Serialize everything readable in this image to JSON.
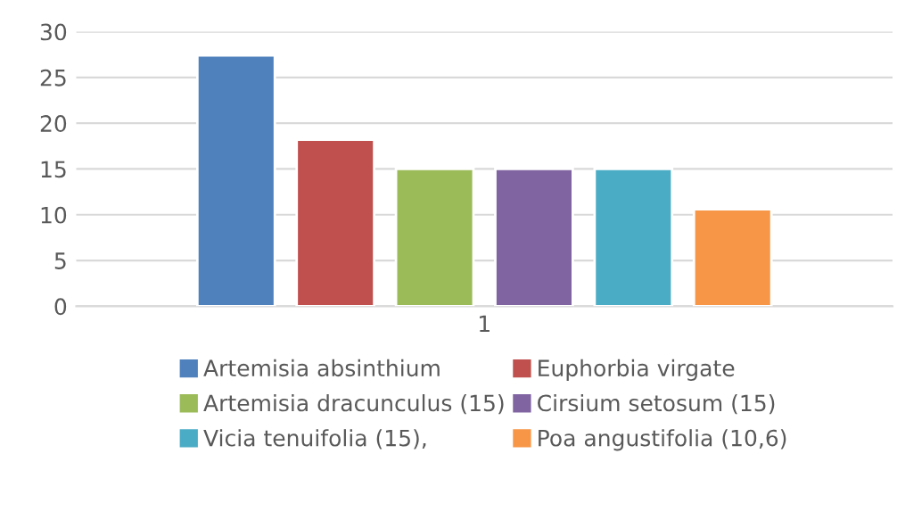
{
  "chart_data": {
    "type": "bar",
    "categories": [
      "1"
    ],
    "series": [
      {
        "name": "Artemisia absinthium",
        "color": "#4f81bd",
        "values": [
          27.4
        ]
      },
      {
        "name": "Euphorbia virgate",
        "color": "#c0504d",
        "values": [
          18.2
        ]
      },
      {
        "name": "Artemisia dracunculus (15)",
        "color": "#9bbb59",
        "values": [
          15
        ]
      },
      {
        "name": "Cirsium setosum (15)",
        "color": "#8064a2",
        "values": [
          15
        ]
      },
      {
        "name": "Vicia tenuifolia (15),",
        "color": "#4bacc6",
        "values": [
          15
        ]
      },
      {
        "name": "Poa angustifolia (10,6)",
        "color": "#f79646",
        "values": [
          10.6
        ]
      }
    ],
    "ylim": [
      0,
      30
    ],
    "yticks": [
      0,
      5,
      10,
      15,
      20,
      25,
      30
    ],
    "grid": "y",
    "legend": "bottom"
  }
}
